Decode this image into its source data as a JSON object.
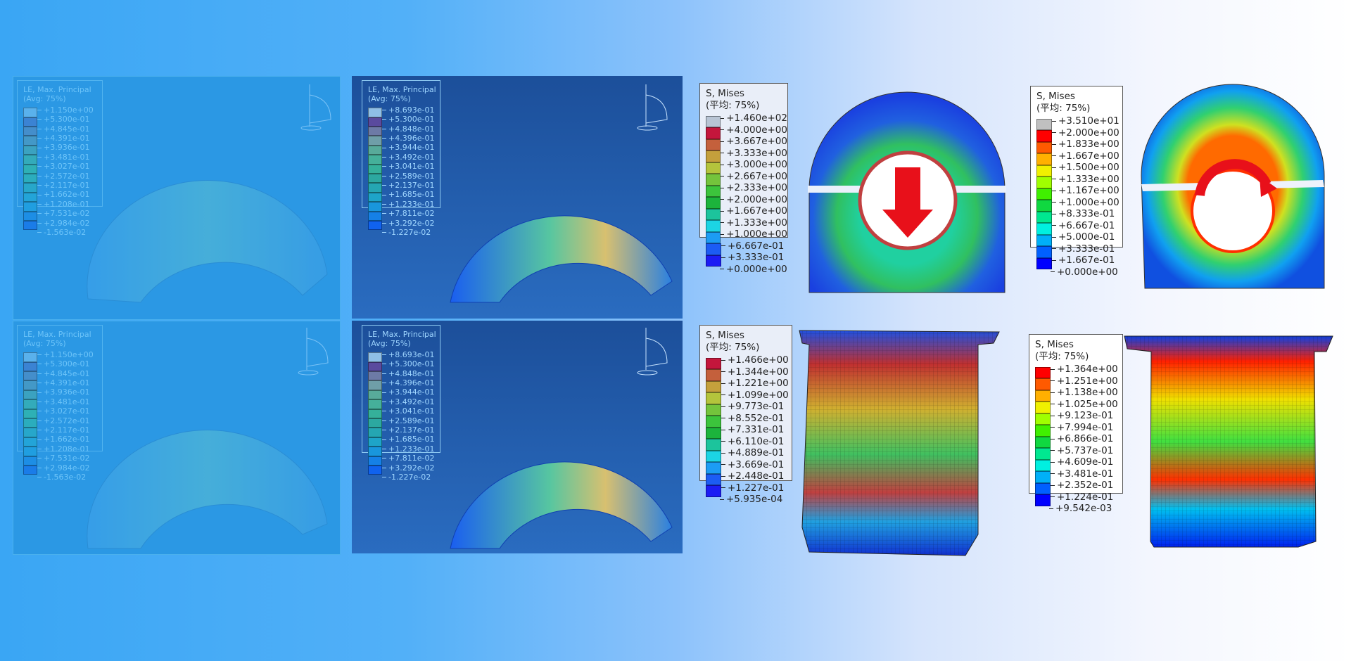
{
  "colors": {
    "bg_left": "#3aa6f4",
    "bg_right": "#ffffff",
    "red_arrow": "#e8101a"
  },
  "legends": [
    {
      "id": "lg-tl",
      "title": "LE, Max. Principal",
      "subtitle": "(Avg: 75%)",
      "values": [
        "+1.150e+00",
        "+5.300e-01",
        "+4.845e-01",
        "+4.391e-01",
        "+3.936e-01",
        "+3.481e-01",
        "+3.027e-01",
        "+2.572e-01",
        "+2.117e-01",
        "+1.662e-01",
        "+1.208e-01",
        "+7.531e-02",
        "+2.984e-02",
        "-1.563e-02"
      ],
      "colors": [
        "#66b8ee",
        "#3f7fcf",
        "#4b8cc6",
        "#4a98c0",
        "#3fa5b8",
        "#35b0b0",
        "#2fb6aa",
        "#2bb3b4",
        "#27abc4",
        "#22a8d6",
        "#1ea0e0",
        "#1a8ce6",
        "#1676ea"
      ]
    },
    {
      "id": "lg-tr",
      "title": "LE, Max. Principal",
      "subtitle": "(Avg: 75%)",
      "values": [
        "+8.693e-01",
        "+5.300e-01",
        "+4.848e-01",
        "+4.396e-01",
        "+3.944e-01",
        "+3.492e-01",
        "+3.041e-01",
        "+2.589e-01",
        "+2.137e-01",
        "+1.685e-01",
        "+1.233e-01",
        "+7.811e-02",
        "+3.292e-02",
        "-1.227e-02"
      ],
      "colors": [
        "#8fbfe6",
        "#5a4a9e",
        "#6d7aa6",
        "#6f9ea8",
        "#58aa9a",
        "#45b09a",
        "#35b09a",
        "#2ca8a0",
        "#25a6b2",
        "#1ea4c8",
        "#1996dc",
        "#1580e6",
        "#1062ee"
      ]
    },
    {
      "id": "lg-bl",
      "title": "LE, Max. Principal",
      "subtitle": "(Avg: 75%)",
      "values": [
        "+1.150e+00",
        "+5.300e-01",
        "+4.845e-01",
        "+4.391e-01",
        "+3.936e-01",
        "+3.481e-01",
        "+3.027e-01",
        "+2.572e-01",
        "+2.117e-01",
        "+1.662e-01",
        "+1.208e-01",
        "+7.531e-02",
        "+2.984e-02",
        "-1.563e-02"
      ],
      "colors": [
        "#66b8ee",
        "#3f7fcf",
        "#4b8cc6",
        "#4a98c0",
        "#3fa5b8",
        "#35b0b0",
        "#2fb6aa",
        "#2bb3b4",
        "#27abc4",
        "#22a8d6",
        "#1ea0e0",
        "#1a8ce6",
        "#1676ea"
      ]
    },
    {
      "id": "lg-br",
      "title": "LE, Max. Principal",
      "subtitle": "(Avg: 75%)",
      "values": [
        "+8.693e-01",
        "+5.300e-01",
        "+4.848e-01",
        "+4.396e-01",
        "+3.944e-01",
        "+3.492e-01",
        "+3.041e-01",
        "+2.589e-01",
        "+2.137e-01",
        "+1.685e-01",
        "+1.233e-01",
        "+7.811e-02",
        "+3.292e-02",
        "-1.227e-02"
      ],
      "colors": [
        "#8fbfe6",
        "#5a4a9e",
        "#6d7aa6",
        "#6f9ea8",
        "#58aa9a",
        "#45b09a",
        "#35b09a",
        "#2ca8a0",
        "#25a6b2",
        "#1ea4c8",
        "#1996dc",
        "#1580e6",
        "#1062ee"
      ]
    },
    {
      "id": "lg-m1",
      "title": "S, Mises",
      "subtitle": "(平均: 75%)",
      "values": [
        "+1.460e+02",
        "+4.000e+00",
        "+3.667e+00",
        "+3.333e+00",
        "+3.000e+00",
        "+2.667e+00",
        "+2.333e+00",
        "+2.000e+00",
        "+1.667e+00",
        "+1.333e+00",
        "+1.000e+00",
        "+6.667e-01",
        "+3.333e-01",
        "+0.000e+00"
      ],
      "colors": [
        "#b8c4d4",
        "#c4163c",
        "#c4603c",
        "#c4a03c",
        "#b4c43c",
        "#74c43c",
        "#3cc43c",
        "#1cb43c",
        "#1cc49c",
        "#1cd4e4",
        "#1c9cf4",
        "#1c5cf4",
        "#1c1cf4"
      ]
    },
    {
      "id": "lg-m2",
      "title": "S, Mises",
      "subtitle": "(平均: 75%)",
      "values": [
        "+3.510e+01",
        "+2.000e+00",
        "+1.833e+00",
        "+1.667e+00",
        "+1.500e+00",
        "+1.333e+00",
        "+1.167e+00",
        "+1.000e+00",
        "+8.333e-01",
        "+6.667e-01",
        "+5.000e-01",
        "+3.333e-01",
        "+1.667e-01",
        "+0.000e+00"
      ],
      "colors": [
        "#c0c0c0",
        "#ff0000",
        "#ff5a00",
        "#ffb000",
        "#f0f000",
        "#a0ff00",
        "#40f000",
        "#10d840",
        "#00e890",
        "#00f0e0",
        "#00b0f8",
        "#0060ff",
        "#0000ff"
      ]
    },
    {
      "id": "lg-m3",
      "title": "S, Mises",
      "subtitle": "(平均: 75%)",
      "values": [
        "+1.466e+00",
        "+1.344e+00",
        "+1.221e+00",
        "+1.099e+00",
        "+9.773e-01",
        "+8.552e-01",
        "+7.331e-01",
        "+6.110e-01",
        "+4.889e-01",
        "+3.669e-01",
        "+2.448e-01",
        "+1.227e-01",
        "+5.935e-04"
      ],
      "colors": [
        "#c4163c",
        "#c4603c",
        "#c4a03c",
        "#b4c43c",
        "#74c43c",
        "#3cc43c",
        "#1cb43c",
        "#1cc49c",
        "#1cd4e4",
        "#1c9cf4",
        "#1c5cf4",
        "#1c1cf4"
      ]
    },
    {
      "id": "lg-m4",
      "title": "S, Mises",
      "subtitle": "(平均: 75%)",
      "values": [
        "+1.364e+00",
        "+1.251e+00",
        "+1.138e+00",
        "+1.025e+00",
        "+9.123e-01",
        "+7.994e-01",
        "+6.866e-01",
        "+5.737e-01",
        "+4.609e-01",
        "+3.481e-01",
        "+2.352e-01",
        "+1.224e-01",
        "+9.542e-03"
      ],
      "colors": [
        "#ff0000",
        "#ff5a00",
        "#ffb000",
        "#f0f000",
        "#a0ff00",
        "#40f000",
        "#10d840",
        "#00e890",
        "#00f0e0",
        "#00b0f8",
        "#0060ff",
        "#0000ff"
      ]
    }
  ]
}
